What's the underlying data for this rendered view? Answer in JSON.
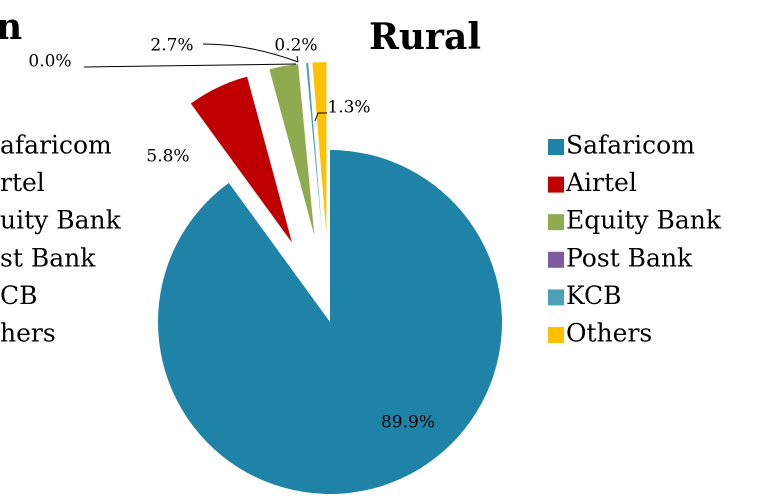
{
  "chart_data": [
    {
      "type": "pie",
      "title": "Rural",
      "categories": [
        "Safaricom",
        "Airtel",
        "Equity Bank",
        "Post Bank",
        "KCB",
        "Others"
      ],
      "values": [
        89.9,
        5.8,
        2.7,
        0.0,
        0.2,
        1.3
      ],
      "value_labels": [
        "89.9%",
        "5.8%",
        "2.7%",
        "0.0%",
        "0.2%",
        "1.3%"
      ],
      "colors": [
        "#1f83a8",
        "#c00000",
        "#8faa4f",
        "#7b5c9e",
        "#4aa0b7",
        "#ffc000"
      ]
    },
    {
      "type": "pie",
      "title": "n",
      "categories": [
        "afaricom",
        "rtel",
        "uity Bank",
        "st Bank",
        "CB",
        "hers"
      ]
    }
  ]
}
